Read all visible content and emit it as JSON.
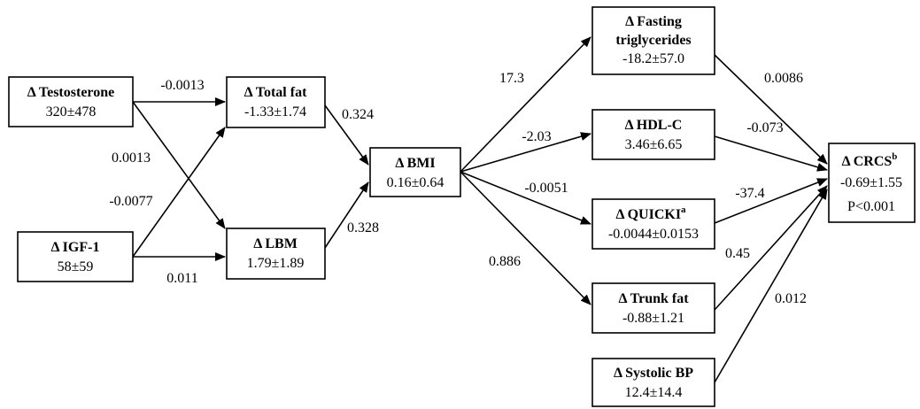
{
  "nodes": {
    "testosterone": {
      "title": "Δ Testosterone",
      "value": "320±478"
    },
    "igf1": {
      "title": "Δ IGF-1",
      "value": "58±59"
    },
    "total_fat": {
      "title": "Δ Total fat",
      "value": "-1.33±1.74"
    },
    "lbm": {
      "title": "Δ LBM",
      "value": "1.79±1.89"
    },
    "bmi": {
      "title": "Δ BMI",
      "value": "0.16±0.64"
    },
    "fasting_tg": {
      "title_line1": "Δ Fasting",
      "title_line2": "triglycerides",
      "value": "-18.2±57.0"
    },
    "hdl": {
      "title": "Δ HDL-C",
      "value": "3.46±6.65"
    },
    "quicki": {
      "title": "Δ QUICKI",
      "sup": "a",
      "value": "-0.0044±0.0153"
    },
    "trunk_fat": {
      "title": "Δ Trunk fat",
      "value": "-0.88±1.21"
    },
    "systolic_bp": {
      "title": "Δ Systolic BP",
      "value": "12.4±14.4"
    },
    "crcs": {
      "title": "Δ CRCS",
      "sup": "b",
      "value": "-0.69±1.55",
      "p": "P<0.001"
    }
  },
  "coefficients": {
    "testosterone_totalfat": "-0.0013",
    "testosterone_lbm": "0.0013",
    "igf1_totalfat": "-0.0077",
    "igf1_lbm": "0.011",
    "totalfat_bmi": "0.324",
    "lbm_bmi": "0.328",
    "bmi_tg": "17.3",
    "bmi_hdl": "-2.03",
    "bmi_quicki": "-0.0051",
    "bmi_trunk": "0.886",
    "tg_crcs": "0.0086",
    "hdl_crcs": "-0.073",
    "quicki_crcs": "-37.4",
    "trunk_crcs": "0.45",
    "sbp_crcs": "0.012"
  }
}
